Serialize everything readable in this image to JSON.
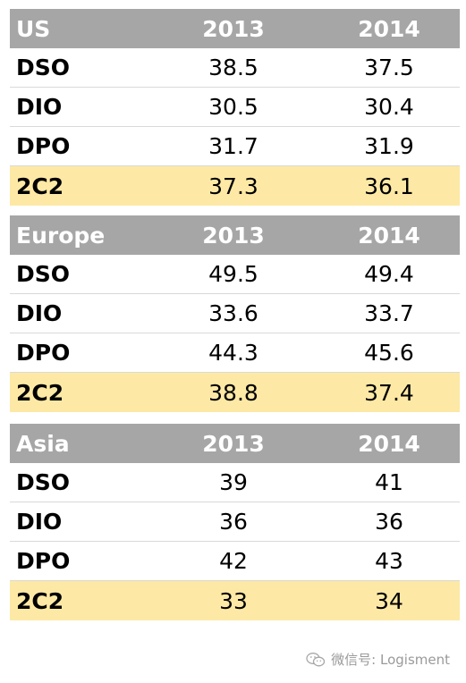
{
  "tables": [
    {
      "region": "US",
      "years": [
        "2013",
        "2014"
      ],
      "rows": [
        {
          "label": "DSO",
          "v2013": "38.5",
          "v2014": "37.5"
        },
        {
          "label": "DIO",
          "v2013": "30.5",
          "v2014": "30.4"
        },
        {
          "label": "DPO",
          "v2013": "31.7",
          "v2014": "31.9"
        },
        {
          "label": "2C2",
          "v2013": "37.3",
          "v2014": "36.1"
        }
      ]
    },
    {
      "region": "Europe",
      "years": [
        "2013",
        "2014"
      ],
      "rows": [
        {
          "label": "DSO",
          "v2013": "49.5",
          "v2014": "49.4"
        },
        {
          "label": "DIO",
          "v2013": "33.6",
          "v2014": "33.7"
        },
        {
          "label": "DPO",
          "v2013": "44.3",
          "v2014": "45.6"
        },
        {
          "label": "2C2",
          "v2013": "38.8",
          "v2014": "37.4"
        }
      ]
    },
    {
      "region": "Asia",
      "years": [
        "2013",
        "2014"
      ],
      "rows": [
        {
          "label": "DSO",
          "v2013": "39",
          "v2014": "41"
        },
        {
          "label": "DIO",
          "v2013": "36",
          "v2014": "36"
        },
        {
          "label": "DPO",
          "v2013": "42",
          "v2014": "43"
        },
        {
          "label": "2C2",
          "v2013": "33",
          "v2014": "34"
        }
      ]
    }
  ],
  "colors": {
    "header_bg": "#a6a6a6",
    "highlight_bg": "#fde9a5"
  },
  "watermark": {
    "text": "微信号: Logisment",
    "icon": "wechat-icon"
  }
}
